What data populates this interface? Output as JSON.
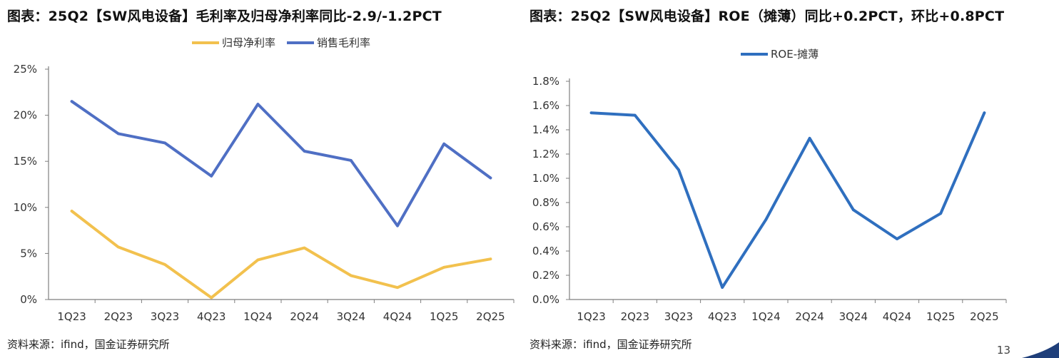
{
  "page": {
    "number": "13",
    "colors": {
      "yellow": "#F2C14E",
      "blue": "#4F6FC4",
      "roe": "#2F6FBF",
      "axis": "#7f7f7f",
      "deco": "#1F3F7A"
    }
  },
  "left_panel": {
    "title": "图表：25Q2【SW风电设备】毛利率及归母净利率同比-2.9/-1.2PCT",
    "source": "资料来源：ifind，国金证券研究所"
  },
  "right_panel": {
    "title": "图表：25Q2【SW风电设备】ROE（摊薄）同比+0.2PCT，环比+0.8PCT",
    "source": "资料来源：ifind，国金证券研究所"
  },
  "chart_data": [
    {
      "type": "line",
      "categories": [
        "1Q23",
        "2Q23",
        "3Q23",
        "4Q23",
        "1Q24",
        "2Q24",
        "3Q24",
        "4Q24",
        "1Q25",
        "2Q25"
      ],
      "series": [
        {
          "name": "归母净利率",
          "color": "#F2C14E",
          "values": [
            9.6,
            5.7,
            3.8,
            0.2,
            4.3,
            5.6,
            2.6,
            1.3,
            3.5,
            4.4
          ]
        },
        {
          "name": "销售毛利率",
          "color": "#4F6FC4",
          "values": [
            21.5,
            18.0,
            17.0,
            13.4,
            21.2,
            16.1,
            15.1,
            8.0,
            16.9,
            13.2
          ]
        }
      ],
      "yticks": [
        "0%",
        "5%",
        "10%",
        "15%",
        "20%",
        "25%"
      ],
      "ylim": [
        0,
        25
      ],
      "unit": "%",
      "grid": false,
      "legend": "top-center"
    },
    {
      "type": "line",
      "categories": [
        "1Q23",
        "2Q23",
        "3Q23",
        "4Q23",
        "1Q24",
        "2Q24",
        "3Q24",
        "4Q24",
        "1Q25",
        "2Q25"
      ],
      "series": [
        {
          "name": "ROE-摊薄",
          "color": "#2F6FBF",
          "values": [
            1.54,
            1.52,
            1.07,
            0.1,
            0.66,
            1.33,
            0.74,
            0.5,
            0.71,
            1.54
          ]
        }
      ],
      "yticks": [
        "0.0%",
        "0.2%",
        "0.4%",
        "0.6%",
        "0.8%",
        "1.0%",
        "1.2%",
        "1.4%",
        "1.6%",
        "1.8%"
      ],
      "ylim": [
        0,
        1.8
      ],
      "unit": "%",
      "grid": false,
      "legend": "top-center"
    }
  ]
}
